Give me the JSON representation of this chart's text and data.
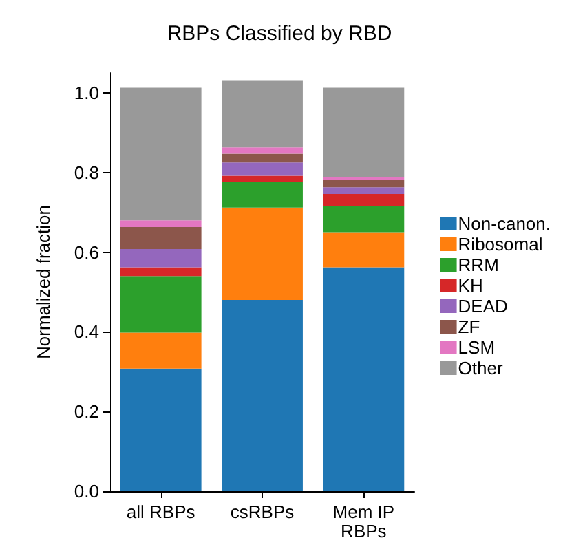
{
  "chart_data": {
    "type": "bar",
    "title": "RBPs Classified by RBD",
    "ylabel": "Normalized fraction",
    "categories": [
      "all RBPs",
      "csRBPs",
      "Mem IP\nRBPs"
    ],
    "stacked": true,
    "series": [
      {
        "name": "Non-canon.",
        "color": "#1f77b4",
        "values": [
          0.308,
          0.48,
          0.562
        ]
      },
      {
        "name": "Ribosomal",
        "color": "#ff7f0e",
        "values": [
          0.09,
          0.232,
          0.088
        ]
      },
      {
        "name": "RRM",
        "color": "#2ca02c",
        "values": [
          0.142,
          0.065,
          0.066
        ]
      },
      {
        "name": "KH",
        "color": "#d62728",
        "values": [
          0.022,
          0.015,
          0.03
        ]
      },
      {
        "name": "DEAD",
        "color": "#9467bd",
        "values": [
          0.046,
          0.033,
          0.017
        ]
      },
      {
        "name": "ZF",
        "color": "#8c564b",
        "values": [
          0.055,
          0.022,
          0.018
        ]
      },
      {
        "name": "LSM",
        "color": "#e377c2",
        "values": [
          0.017,
          0.016,
          0.008
        ]
      },
      {
        "name": "Other",
        "color": "#999999",
        "values": [
          0.333,
          0.167,
          0.224
        ]
      }
    ],
    "ylim": [
      0,
      1.05
    ],
    "yticks": [
      {
        "value": 0,
        "label": "0.0"
      },
      {
        "value": 0.2,
        "label": "0.2"
      },
      {
        "value": 0.4,
        "label": "0.4"
      },
      {
        "value": 0.6,
        "label": "0.6"
      },
      {
        "value": 0.8,
        "label": "0.8"
      },
      {
        "value": 1,
        "label": "1.0"
      }
    ],
    "grid": false,
    "legend": "right"
  }
}
